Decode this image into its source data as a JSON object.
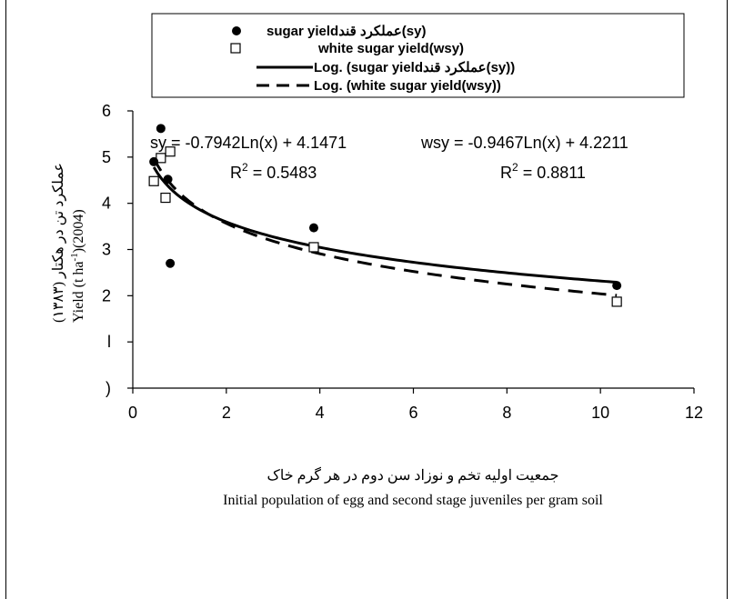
{
  "chart_data": {
    "type": "scatter",
    "xlabel_fa": "جمعیت اولیه تخم و نوزاد سن دوم در هر گرم خاک",
    "xlabel": "Initial population of egg and second stage juveniles per gram soil",
    "ylabel_fa": "عملکرد تن در هکتار (۱۳۸۳)",
    "ylabel_prefix": "Yield (t ha",
    "ylabel_sup": "-1",
    "ylabel_suffix": ")(2004)",
    "xlim": [
      0,
      12
    ],
    "ylim": [
      0,
      6
    ],
    "x_ticks": [
      "0",
      "2",
      "4",
      "6",
      "8",
      "10",
      "12"
    ],
    "y_ticks": [
      ")",
      "l",
      "2",
      "3",
      "4",
      "5",
      "6"
    ],
    "grid": false,
    "legend_position": "top",
    "series": [
      {
        "name": "sugar yieldعملکرد قند(sy)",
        "marker": "filled-circle",
        "color": "#000000",
        "x": [
          0.45,
          0.6,
          0.75,
          0.8,
          3.87,
          10.35
        ],
        "y": [
          4.9,
          5.62,
          4.52,
          2.7,
          3.47,
          2.22
        ]
      },
      {
        "name": "white sugar yield(wsy)",
        "marker": "open-square",
        "color": "#000000",
        "x": [
          0.45,
          0.6,
          0.7,
          0.8
        ],
        "y": [
          4.48,
          4.98,
          4.12,
          5.12
        ]
      },
      {
        "name": "Log. (sugar yieldعملکرد قند(sy))",
        "type": "trendline",
        "style": "solid",
        "a": -0.7942,
        "b": 4.1471,
        "x_range": [
          0.45,
          10.35
        ]
      },
      {
        "name": "Log. (white sugar yield(wsy))",
        "type": "trendline",
        "style": "dashed",
        "a": -0.9467,
        "b": 4.2211,
        "x_range": [
          0.45,
          10.35
        ]
      }
    ],
    "annotations": {
      "sy_equation": "sy = -0.7942Ln(x) + 4.1471",
      "wsy_equation": "wsy = -0.9467Ln(x) + 4.2211",
      "r2_label": "R",
      "r2_sup": "2",
      "sy_r2_value": " = 0.5483",
      "wsy_r2_value": " = 0.8811"
    },
    "extra_points": {
      "wsy_extra_x": [
        3.87,
        10.35
      ],
      "wsy_extra_y": [
        3.05,
        1.87
      ]
    }
  }
}
